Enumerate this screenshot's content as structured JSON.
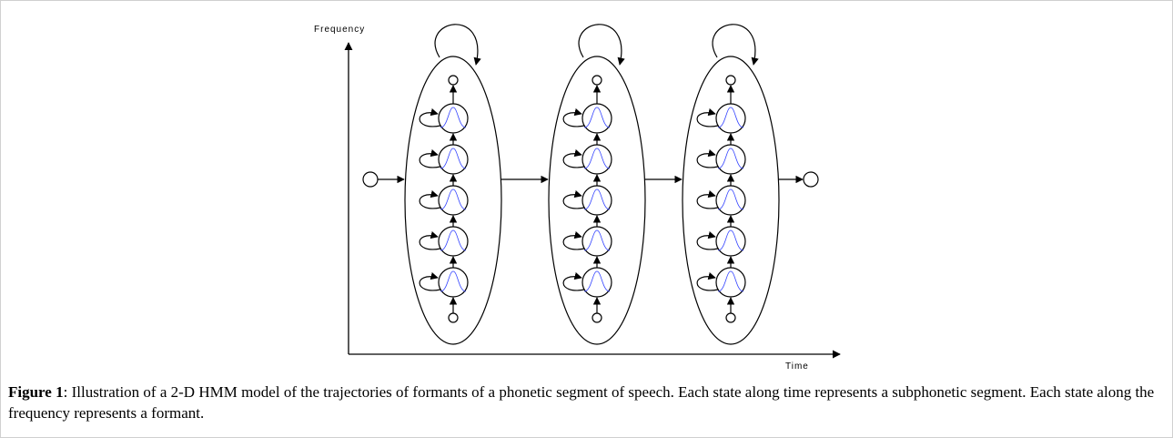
{
  "figure": {
    "axis_labels": {
      "y": "Frequency",
      "x": "Time"
    },
    "caption": {
      "label": "Figure 1",
      "text": ": Illustration of a 2-D HMM model of the trajectories of formants of a phonetic segment of speech. Each state along time represents a subphonetic segment. Each state along the frequency represents a formant."
    }
  }
}
